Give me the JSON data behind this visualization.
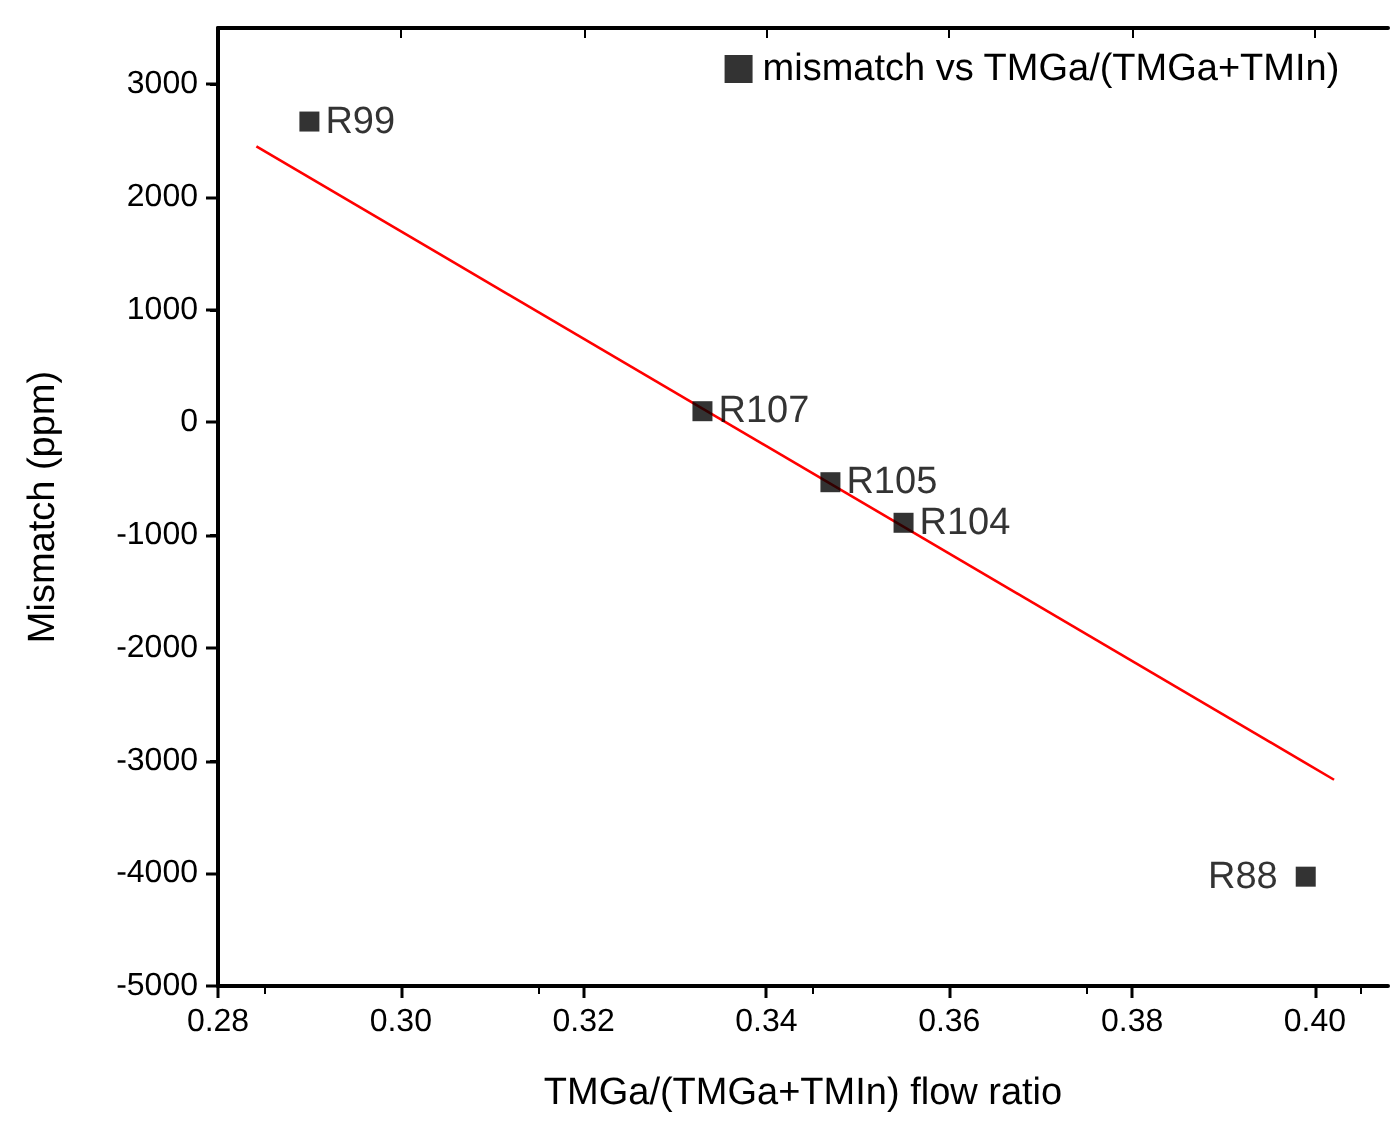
{
  "chart_data": {
    "type": "scatter",
    "xlabel": "TMGa/(TMGa+TMIn) flow ratio",
    "ylabel": "Mismatch (ppm)",
    "xlim": [
      0.28,
      0.408
    ],
    "xticks": [
      0.28,
      {
        "value": 0.3,
        "label": "0.30"
      },
      0.32,
      0.34,
      0.36,
      0.38,
      {
        "value": 0.4,
        "label": "0.40"
      }
    ],
    "ylim": [
      -5000,
      3500
    ],
    "yticks": [
      -5000,
      -4000,
      -3000,
      -2000,
      -1000,
      0,
      1000,
      2000,
      3000
    ],
    "grid": false,
    "legend": "top right",
    "marker": "square",
    "series": [
      {
        "name": "mismatch vs TMGa/(TMGa+TMIn)",
        "color": "#000000",
        "x": [
          0.29,
          0.333,
          0.347,
          0.355,
          0.399
        ],
        "values": [
          2670,
          100,
          -530,
          -890,
          -4030
        ]
      },
      {
        "type": "line",
        "color": "#ff0000",
        "x": [
          0.2842,
          0.4021
        ],
        "values": [
          2450,
          -3170
        ],
        "marker": "none",
        "line_style": "solid"
      }
    ],
    "annotations": [
      {
        "text": "R99",
        "x": 0.29,
        "y": 2670
      },
      {
        "text": "R107",
        "x": 0.333,
        "y": 100
      },
      {
        "text": "R105",
        "x": 0.347,
        "y": -530
      },
      {
        "text": "R104",
        "x": 0.355,
        "y": -890
      },
      {
        "text": "R88",
        "x": 0.399,
        "y": -4030
      }
    ]
  }
}
